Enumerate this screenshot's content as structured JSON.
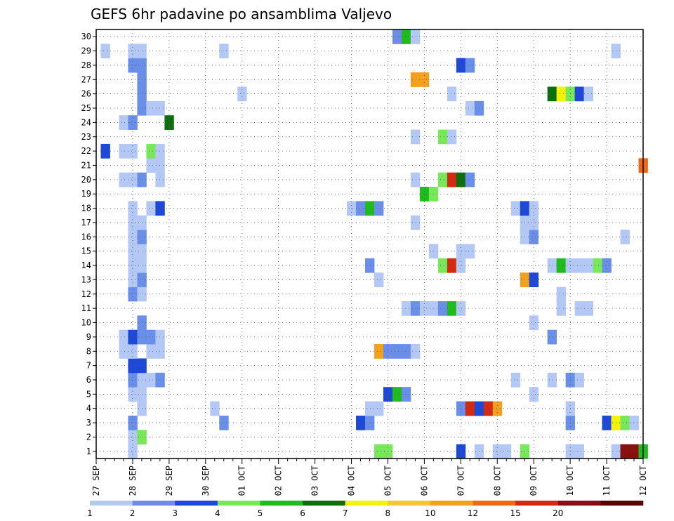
{
  "chart_data": {
    "type": "heatmap",
    "title": "GEFS 6hr padavine po ansamblima Valjevo",
    "xlabel": "",
    "ylabel": "",
    "x_ticks": [
      "27 SEP",
      "28 SEP",
      "29 SEP",
      "30 SEP",
      "01 OCT",
      "02 OCT",
      "03 OCT",
      "04 OCT",
      "05 OCT",
      "06 OCT",
      "07 OCT",
      "08 OCT",
      "09 OCT",
      "10 OCT",
      "11 OCT",
      "12 OCT"
    ],
    "x_unit": "6-hour steps from 27 SEP 00Z (4 steps per day)",
    "xlim": [
      0,
      60
    ],
    "y_members": [
      1,
      2,
      3,
      4,
      5,
      6,
      7,
      8,
      9,
      10,
      11,
      12,
      13,
      14,
      15,
      16,
      17,
      18,
      19,
      20,
      21,
      22,
      23,
      24,
      25,
      26,
      27,
      28,
      29,
      30
    ],
    "color_levels": [
      1,
      2,
      3,
      4,
      5,
      6,
      7,
      8,
      10,
      12,
      15,
      20
    ],
    "color_scale": [
      "#b4c8f6",
      "#6a8fe8",
      "#1d48d8",
      "#78e85a",
      "#1fbb1f",
      "#0d6e0d",
      "#f2f20a",
      "#f9c33a",
      "#f2a01f",
      "#ed6a14",
      "#d22b12",
      "#8a0f0f",
      "#5a0505"
    ],
    "grid": true,
    "cells": [
      [
        1,
        4,
        0
      ],
      [
        1,
        31,
        3
      ],
      [
        1,
        32,
        3
      ],
      [
        1,
        40,
        2
      ],
      [
        1,
        42,
        0
      ],
      [
        1,
        44,
        0
      ],
      [
        1,
        45,
        0
      ],
      [
        1,
        47,
        3
      ],
      [
        1,
        52,
        0
      ],
      [
        1,
        53,
        0
      ],
      [
        1,
        57,
        0
      ],
      [
        1,
        58,
        11
      ],
      [
        1,
        59,
        11
      ],
      [
        1,
        60,
        4
      ],
      [
        2,
        4,
        0
      ],
      [
        2,
        5,
        3
      ],
      [
        3,
        4,
        1
      ],
      [
        3,
        14,
        1
      ],
      [
        3,
        29,
        2
      ],
      [
        3,
        30,
        1
      ],
      [
        3,
        52,
        1
      ],
      [
        3,
        56,
        2
      ],
      [
        3,
        57,
        6
      ],
      [
        3,
        58,
        3
      ],
      [
        3,
        59,
        0
      ],
      [
        4,
        5,
        0
      ],
      [
        4,
        13,
        0
      ],
      [
        4,
        30,
        0
      ],
      [
        4,
        31,
        0
      ],
      [
        4,
        40,
        1
      ],
      [
        4,
        41,
        10
      ],
      [
        4,
        42,
        2
      ],
      [
        4,
        43,
        10
      ],
      [
        4,
        44,
        8
      ],
      [
        4,
        52,
        0
      ],
      [
        5,
        4,
        0
      ],
      [
        5,
        5,
        0
      ],
      [
        5,
        32,
        2
      ],
      [
        5,
        33,
        4
      ],
      [
        5,
        34,
        1
      ],
      [
        5,
        48,
        0
      ],
      [
        6,
        4,
        1
      ],
      [
        6,
        5,
        0
      ],
      [
        6,
        6,
        0
      ],
      [
        6,
        7,
        1
      ],
      [
        6,
        46,
        0
      ],
      [
        6,
        50,
        0
      ],
      [
        6,
        52,
        1
      ],
      [
        6,
        53,
        0
      ],
      [
        7,
        4,
        2
      ],
      [
        7,
        5,
        2
      ],
      [
        8,
        3,
        0
      ],
      [
        8,
        4,
        0
      ],
      [
        8,
        6,
        0
      ],
      [
        8,
        7,
        0
      ],
      [
        8,
        31,
        8
      ],
      [
        8,
        32,
        1
      ],
      [
        8,
        33,
        1
      ],
      [
        8,
        34,
        1
      ],
      [
        8,
        35,
        0
      ],
      [
        9,
        3,
        0
      ],
      [
        9,
        4,
        2
      ],
      [
        9,
        5,
        1
      ],
      [
        9,
        6,
        1
      ],
      [
        9,
        7,
        0
      ],
      [
        9,
        50,
        1
      ],
      [
        10,
        5,
        1
      ],
      [
        10,
        48,
        0
      ],
      [
        11,
        34,
        0
      ],
      [
        11,
        35,
        1
      ],
      [
        11,
        36,
        0
      ],
      [
        11,
        37,
        0
      ],
      [
        11,
        38,
        1
      ],
      [
        11,
        39,
        4
      ],
      [
        11,
        40,
        0
      ],
      [
        11,
        51,
        0
      ],
      [
        11,
        53,
        0
      ],
      [
        11,
        54,
        0
      ],
      [
        12,
        4,
        1
      ],
      [
        12,
        5,
        0
      ],
      [
        12,
        51,
        0
      ],
      [
        13,
        4,
        0
      ],
      [
        13,
        5,
        1
      ],
      [
        13,
        31,
        0
      ],
      [
        13,
        47,
        8
      ],
      [
        13,
        48,
        2
      ],
      [
        14,
        4,
        0
      ],
      [
        14,
        5,
        0
      ],
      [
        14,
        30,
        1
      ],
      [
        14,
        38,
        3
      ],
      [
        14,
        39,
        10
      ],
      [
        14,
        40,
        0
      ],
      [
        14,
        50,
        0
      ],
      [
        14,
        51,
        4
      ],
      [
        14,
        52,
        0
      ],
      [
        14,
        53,
        0
      ],
      [
        14,
        54,
        0
      ],
      [
        14,
        55,
        3
      ],
      [
        14,
        56,
        1
      ],
      [
        15,
        4,
        0
      ],
      [
        15,
        5,
        0
      ],
      [
        15,
        37,
        0
      ],
      [
        15,
        40,
        0
      ],
      [
        15,
        41,
        0
      ],
      [
        16,
        4,
        0
      ],
      [
        16,
        5,
        1
      ],
      [
        16,
        47,
        0
      ],
      [
        16,
        48,
        1
      ],
      [
        16,
        58,
        0
      ],
      [
        17,
        4,
        0
      ],
      [
        17,
        5,
        0
      ],
      [
        17,
        35,
        0
      ],
      [
        17,
        47,
        0
      ],
      [
        17,
        48,
        0
      ],
      [
        18,
        4,
        0
      ],
      [
        18,
        6,
        0
      ],
      [
        18,
        7,
        2
      ],
      [
        18,
        28,
        0
      ],
      [
        18,
        29,
        1
      ],
      [
        18,
        30,
        4
      ],
      [
        18,
        31,
        1
      ],
      [
        18,
        46,
        0
      ],
      [
        18,
        47,
        2
      ],
      [
        18,
        48,
        0
      ],
      [
        19,
        36,
        4
      ],
      [
        19,
        37,
        3
      ],
      [
        20,
        3,
        0
      ],
      [
        20,
        4,
        0
      ],
      [
        20,
        5,
        1
      ],
      [
        20,
        7,
        0
      ],
      [
        20,
        35,
        0
      ],
      [
        20,
        38,
        3
      ],
      [
        20,
        39,
        10
      ],
      [
        20,
        40,
        5
      ],
      [
        20,
        41,
        1
      ],
      [
        21,
        6,
        0
      ],
      [
        21,
        7,
        0
      ],
      [
        21,
        60,
        9
      ],
      [
        22,
        1,
        2
      ],
      [
        22,
        3,
        0
      ],
      [
        22,
        4,
        0
      ],
      [
        22,
        6,
        3
      ],
      [
        22,
        7,
        0
      ],
      [
        23,
        35,
        0
      ],
      [
        23,
        38,
        3
      ],
      [
        23,
        39,
        0
      ],
      [
        24,
        3,
        0
      ],
      [
        24,
        4,
        1
      ],
      [
        24,
        8,
        5
      ],
      [
        25,
        5,
        1
      ],
      [
        25,
        6,
        0
      ],
      [
        25,
        7,
        0
      ],
      [
        25,
        41,
        0
      ],
      [
        25,
        42,
        1
      ],
      [
        26,
        5,
        1
      ],
      [
        26,
        16,
        0
      ],
      [
        26,
        39,
        0
      ],
      [
        26,
        50,
        5
      ],
      [
        26,
        51,
        6
      ],
      [
        26,
        52,
        3
      ],
      [
        26,
        53,
        2
      ],
      [
        26,
        54,
        0
      ],
      [
        27,
        5,
        1
      ],
      [
        27,
        35,
        8
      ],
      [
        27,
        36,
        8
      ],
      [
        28,
        4,
        1
      ],
      [
        28,
        5,
        1
      ],
      [
        28,
        40,
        2
      ],
      [
        28,
        41,
        1
      ],
      [
        29,
        1,
        0
      ],
      [
        29,
        4,
        0
      ],
      [
        29,
        5,
        0
      ],
      [
        29,
        14,
        0
      ],
      [
        29,
        57,
        0
      ],
      [
        30,
        33,
        1
      ],
      [
        30,
        34,
        4
      ],
      [
        30,
        35,
        0
      ]
    ]
  }
}
